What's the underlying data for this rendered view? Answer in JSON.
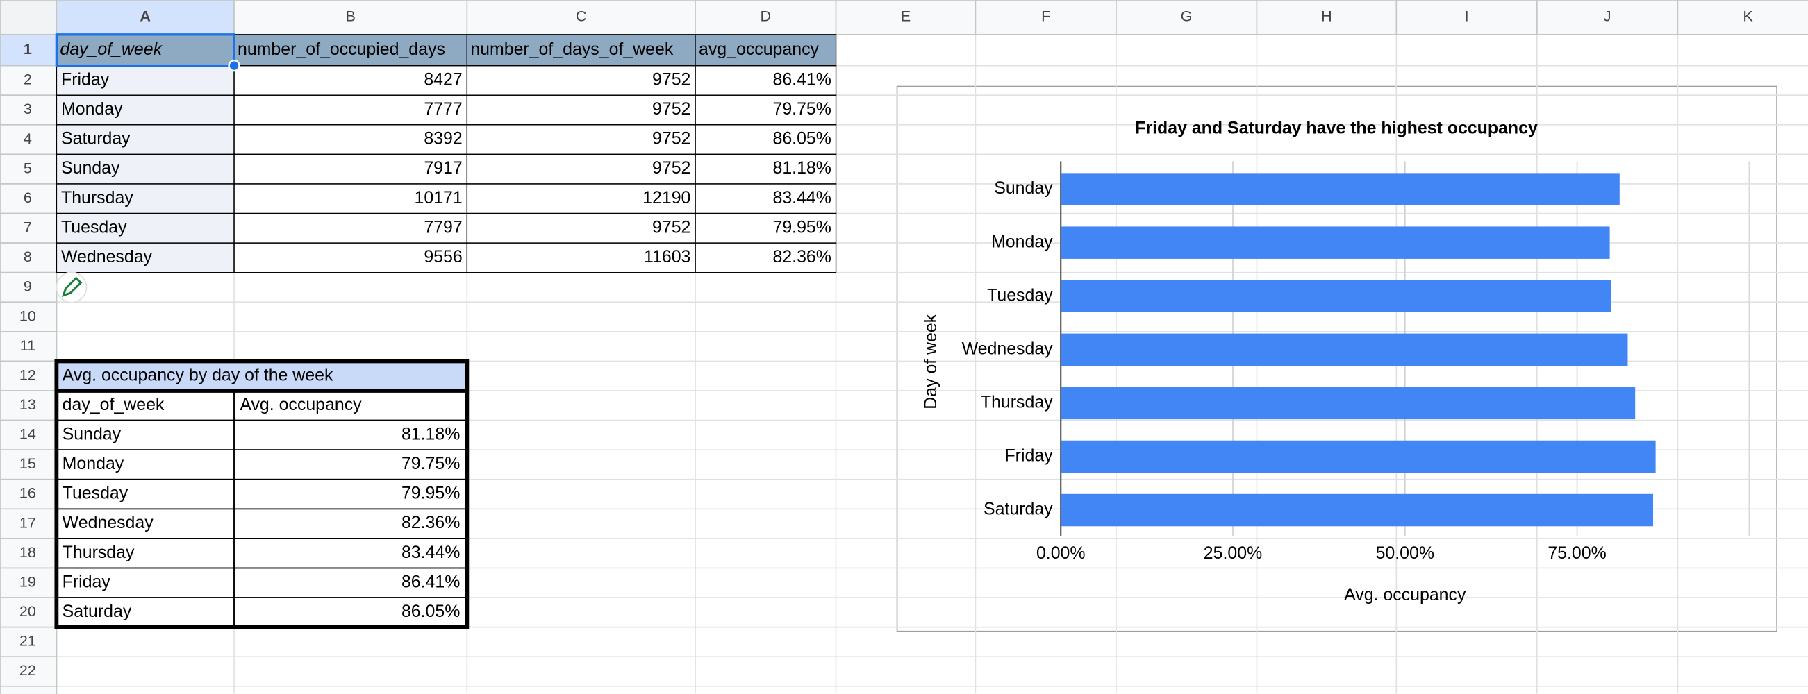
{
  "column_letters": [
    "A",
    "B",
    "C",
    "D",
    "E",
    "F",
    "G",
    "H",
    "I",
    "J",
    "K"
  ],
  "row_numbers": [
    1,
    2,
    3,
    4,
    5,
    6,
    7,
    8,
    9,
    10,
    11,
    12,
    13,
    14,
    15,
    16,
    17,
    18,
    19,
    20,
    21,
    22
  ],
  "data_table": {
    "header": [
      "day_of_week",
      "number_of_occupied_days",
      "number_of_days_of_week",
      "avg_occupancy"
    ],
    "rows": [
      [
        "Friday",
        8427,
        9752,
        "86.41%"
      ],
      [
        "Monday",
        7777,
        9752,
        "79.75%"
      ],
      [
        "Saturday",
        8392,
        9752,
        "86.05%"
      ],
      [
        "Sunday",
        7917,
        9752,
        "81.18%"
      ],
      [
        "Thursday",
        10171,
        12190,
        "83.44%"
      ],
      [
        "Tuesday",
        7797,
        9752,
        "79.95%"
      ],
      [
        "Wednesday",
        9556,
        11603,
        "82.36%"
      ]
    ]
  },
  "summary_table": {
    "title": "Avg. occupancy by day of the week",
    "header": [
      "day_of_week",
      "Avg. occupancy"
    ],
    "rows": [
      [
        "Sunday",
        "81.18%"
      ],
      [
        "Monday",
        "79.75%"
      ],
      [
        "Tuesday",
        "79.95%"
      ],
      [
        "Wednesday",
        "82.36%"
      ],
      [
        "Thursday",
        "83.44%"
      ],
      [
        "Friday",
        "86.41%"
      ],
      [
        "Saturday",
        "86.05%"
      ]
    ]
  },
  "chart_data": {
    "type": "bar",
    "orientation": "horizontal",
    "title": "Friday and Saturday have the highest occupancy",
    "x_label": "Avg. occupancy",
    "y_label": "Day of week",
    "categories": [
      "Sunday",
      "Monday",
      "Tuesday",
      "Wednesday",
      "Thursday",
      "Friday",
      "Saturday"
    ],
    "values": [
      81.18,
      79.75,
      79.95,
      82.36,
      83.44,
      86.41,
      86.05
    ],
    "color": "#4285f4",
    "xlim": [
      0,
      100
    ],
    "xticks": [
      {
        "value": 0,
        "label": "0.00%"
      },
      {
        "value": 25,
        "label": "25.00%"
      },
      {
        "value": 50,
        "label": "50.00%"
      },
      {
        "value": 75,
        "label": "75.00%"
      }
    ],
    "grid": true
  }
}
